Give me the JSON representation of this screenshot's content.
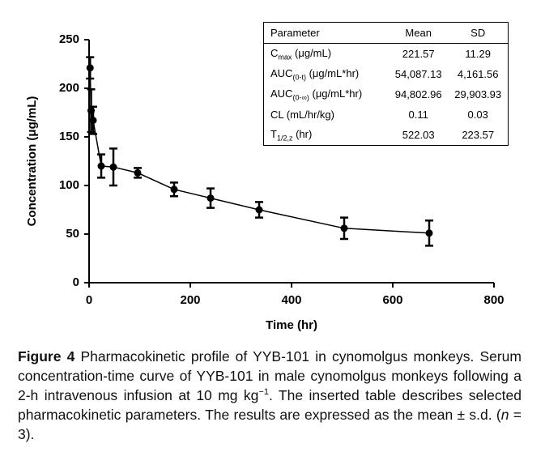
{
  "chart_data": {
    "type": "line",
    "xlabel": "Time (hr)",
    "ylabel": "Concentration (μg/mL)",
    "x": [
      2,
      4,
      8,
      24,
      48,
      96,
      168,
      240,
      336,
      504,
      672
    ],
    "series": [
      {
        "color": "#000000",
        "values": [
          221,
          177,
          167,
          120,
          119,
          113,
          96,
          87,
          75,
          56,
          51
        ],
        "errors": [
          11,
          22,
          14,
          12,
          19,
          5,
          7,
          10,
          8,
          11,
          13
        ]
      }
    ],
    "xlim": [
      0,
      800
    ],
    "xticks": [
      0,
      200,
      400,
      600,
      800
    ],
    "ylim": [
      0,
      250
    ],
    "yticks": [
      0,
      50,
      100,
      150,
      200,
      250
    ]
  },
  "table": {
    "header": [
      "Parameter",
      "Mean",
      "SD"
    ],
    "rows": [
      {
        "label": {
          "main": "C",
          "sub": "max",
          "rest": " (μg/mL)"
        },
        "mean": "221.57",
        "sd": "11.29"
      },
      {
        "label": {
          "main": "AUC",
          "sub": "(0-t)",
          "rest": " (μg/mL*hr)"
        },
        "mean": "54,087.13",
        "sd": "4,161.56"
      },
      {
        "label": {
          "main": "AUC",
          "sub": "(0-∞)",
          "rest": " (μg/mL*hr)"
        },
        "mean": "94,802.96",
        "sd": "29,903.93"
      },
      {
        "label": {
          "main": "CL (mL/hr/kg)",
          "sub": "",
          "rest": ""
        },
        "mean": "0.11",
        "sd": "0.03"
      },
      {
        "label": {
          "main": "T",
          "sub": "1/2,z",
          "rest": " (hr)"
        },
        "mean": "522.03",
        "sd": "223.57"
      }
    ]
  },
  "caption": [
    {
      "text": "Figure 4",
      "style": "bold"
    },
    {
      "text": " Pharmacokinetic profile of YYB-101 in cynomolgus monkeys. Serum concentration-time curve of YYB-101 in male cynomolgus monkeys following a 2-h intravenous infusion at 10 mg kg",
      "style": "normal"
    },
    {
      "text": "−1",
      "style": "sup"
    },
    {
      "text": ". The inserted table describes selected pharmacokinetic parameters. The results are expressed as the mean ± s.d. (",
      "style": "normal"
    },
    {
      "text": "n",
      "style": "italic"
    },
    {
      "text": " = 3).",
      "style": "normal"
    }
  ]
}
